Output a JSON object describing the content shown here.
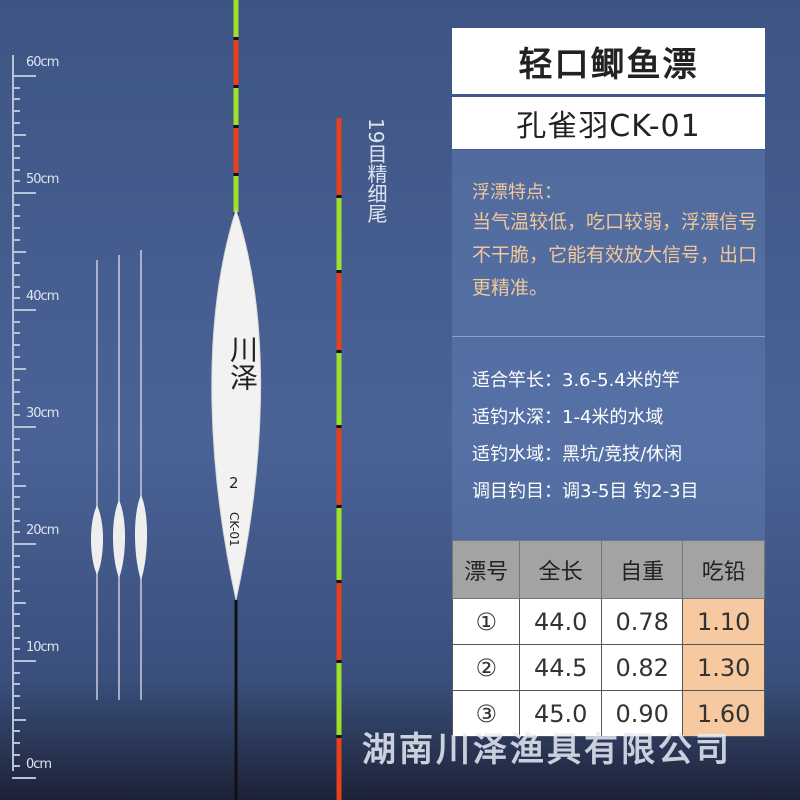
{
  "ruler": {
    "labels": [
      "60cm",
      "50cm",
      "40cm",
      "30cm",
      "20cm",
      "10cm",
      "0cm"
    ]
  },
  "float": {
    "brand": "川泽",
    "number": "2",
    "model": "CK-01"
  },
  "tail_label": "19目精细尾",
  "header": {
    "title": "轻口鲫鱼漂",
    "subtitle": "孔雀羽CK-01"
  },
  "features": {
    "title": "浮漂特点：",
    "body": "当气温较低，吃口较弱，浮漂信号不干脆，它能有效放大信号，出口更精准。"
  },
  "specs": [
    "适合竿长：3.6-5.4米的竿",
    "适钓水深：1-4米的水域",
    "适钓水域：黑坑/竞技/休闲",
    "调目钓目：调3-5目 钓2-3目"
  ],
  "table": {
    "headers": [
      "漂号",
      "全长",
      "自重",
      "吃铅"
    ],
    "rows": [
      [
        "①",
        "44.0",
        "0.78",
        "1.10"
      ],
      [
        "②",
        "44.5",
        "0.82",
        "1.30"
      ],
      [
        "③",
        "45.0",
        "0.90",
        "1.60"
      ]
    ]
  },
  "company": "湖南川泽渔具有限公司",
  "colors": {
    "tail_red": "#e8401c",
    "tail_green": "#9ee02a",
    "lead_cell": "#f6c9a0"
  }
}
